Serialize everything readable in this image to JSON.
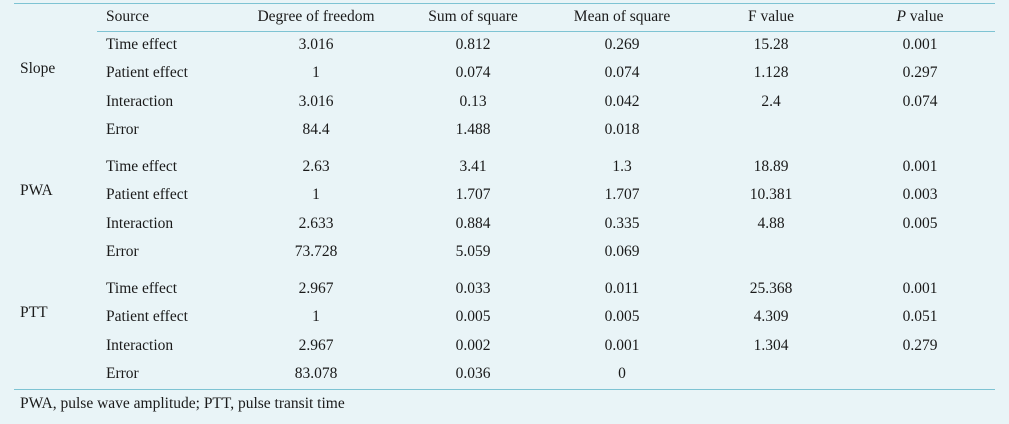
{
  "table": {
    "headers": {
      "source": "Source",
      "df": "Degree of freedom",
      "ss": "Sum of square",
      "ms": "Mean of square",
      "f": "F value",
      "p_italic": "P",
      "p_rest": " value"
    },
    "groups": [
      {
        "label": "Slope",
        "rows": [
          {
            "source": "Time effect",
            "df": "3.016",
            "ss": "0.812",
            "ms": "0.269",
            "f": "15.28",
            "p": "0.001"
          },
          {
            "source": "Patient effect",
            "df": "1",
            "ss": "0.074",
            "ms": "0.074",
            "f": "1.128",
            "p": "0.297"
          },
          {
            "source": "Interaction",
            "df": "3.016",
            "ss": "0.13",
            "ms": "0.042",
            "f": "2.4",
            "p": "0.074"
          },
          {
            "source": "Error",
            "df": "84.4",
            "ss": "1.488",
            "ms": "0.018",
            "f": "",
            "p": ""
          }
        ]
      },
      {
        "label": "PWA",
        "rows": [
          {
            "source": "Time effect",
            "df": "2.63",
            "ss": "3.41",
            "ms": "1.3",
            "f": "18.89",
            "p": "0.001"
          },
          {
            "source": "Patient effect",
            "df": "1",
            "ss": "1.707",
            "ms": "1.707",
            "f": "10.381",
            "p": "0.003"
          },
          {
            "source": "Interaction",
            "df": "2.633",
            "ss": "0.884",
            "ms": "0.335",
            "f": "4.88",
            "p": "0.005"
          },
          {
            "source": "Error",
            "df": "73.728",
            "ss": "5.059",
            "ms": "0.069",
            "f": "",
            "p": ""
          }
        ]
      },
      {
        "label": "PTT",
        "rows": [
          {
            "source": "Time effect",
            "df": "2.967",
            "ss": "0.033",
            "ms": "0.011",
            "f": "25.368",
            "p": "0.001"
          },
          {
            "source": "Patient effect",
            "df": "1",
            "ss": "0.005",
            "ms": "0.005",
            "f": "4.309",
            "p": "0.051"
          },
          {
            "source": "Interaction",
            "df": "2.967",
            "ss": "0.002",
            "ms": "0.001",
            "f": "1.304",
            "p": "0.279"
          },
          {
            "source": "Error",
            "df": "83.078",
            "ss": "0.036",
            "ms": "0",
            "f": "",
            "p": ""
          }
        ]
      }
    ]
  },
  "footnote": "PWA, pulse wave amplitude; PTT, pulse transit time"
}
